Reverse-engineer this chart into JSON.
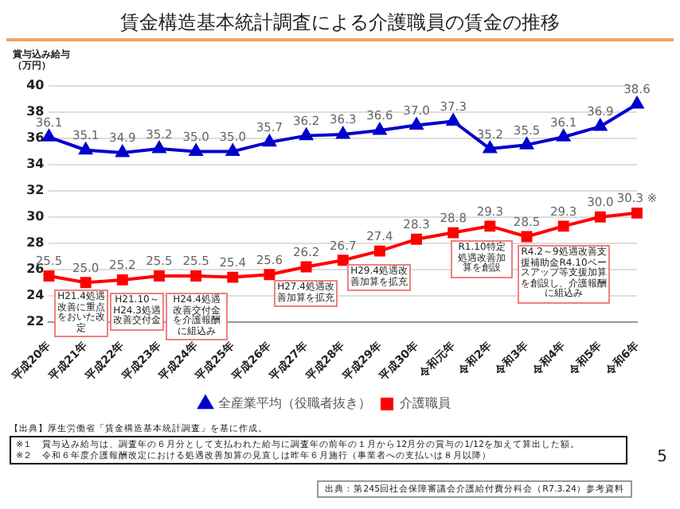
{
  "chart_data": {
    "type": "line",
    "title": "賃金構造基本統計調査による介護職員の賃金の推移",
    "ylabel": "賞与込み給与（万円）",
    "categories": [
      "平成20年",
      "平成21年",
      "平成22年",
      "平成23年",
      "平成24年",
      "平成25年",
      "平成26年",
      "平成27年",
      "平成28年",
      "平成29年",
      "平成30年",
      "令和元年",
      "令和2年",
      "令和3年",
      "令和4年",
      "令和5年",
      "令和6年"
    ],
    "series": [
      {
        "name": "全産業平均（役職者抜き）",
        "color": "#0000cc",
        "marker": "triangle",
        "values": [
          36.1,
          35.1,
          34.9,
          35.2,
          35.0,
          35.0,
          35.7,
          36.2,
          36.3,
          36.6,
          37.0,
          37.3,
          35.2,
          35.5,
          36.1,
          36.9,
          38.6
        ],
        "value_labels": [
          "36.1",
          "35.1",
          "34.9",
          "35.2",
          "35.0",
          "35.0",
          "35.7",
          "36.2",
          "36.3",
          "36.6",
          "37.0",
          "37.3",
          "35.2",
          "35.5",
          "36.1",
          "36.9",
          "38.6"
        ]
      },
      {
        "name": "介護職員",
        "color": "#ff0000",
        "marker": "square",
        "values": [
          25.5,
          25.0,
          25.2,
          25.5,
          25.5,
          25.4,
          25.6,
          26.2,
          26.7,
          27.4,
          28.3,
          28.8,
          29.3,
          28.5,
          29.3,
          30.0,
          30.3
        ],
        "value_labels": [
          "25.5",
          "25.0",
          "25.2",
          "25.5",
          "25.5",
          "25.4",
          "25.6",
          "26.2",
          "26.7",
          "27.4",
          "28.3",
          "28.8",
          "29.3",
          "28.5",
          "29.3",
          "30.0",
          "30.3 ※"
        ]
      }
    ],
    "ylim": [
      22,
      40
    ],
    "yticks": [
      22,
      24,
      26,
      28,
      30,
      32,
      34,
      36,
      38,
      40
    ],
    "grid": "y",
    "legend": "bottom",
    "line_style": "solid",
    "annotations": [
      "H21.4処遇改善に重点をおいた改定",
      "H21.10～H24.3処遇改善交付金",
      "H24.4処遇改善交付金を介護報酬に組込み",
      "H27.4処遇改善加算を拡充",
      "H29.4処遇改善加算を拡充",
      "R1.10特定処遇改善加算を創設",
      "R4.2～9処遇改善支援補助金R4.10ベースアップ等支援加算を創設し、介護報酬に組込み",
      "【出典】厚生労働省「賃金構造基本統計調査」を基に作成。",
      "※１　賞与込み給与は、調査年の６月分として支払われた給与に調査年の前年の１月から12月分の賞与の1/12を加えて算出した額。",
      "※２　令和６年度介護報酬改定における処遇改善加算の見直しは昨年６月施行（事業者への支払いは８月以降）",
      "出典：第245回社会保障審議会介護給付費分科会（R7.3.24）参考資料",
      "5"
    ]
  }
}
